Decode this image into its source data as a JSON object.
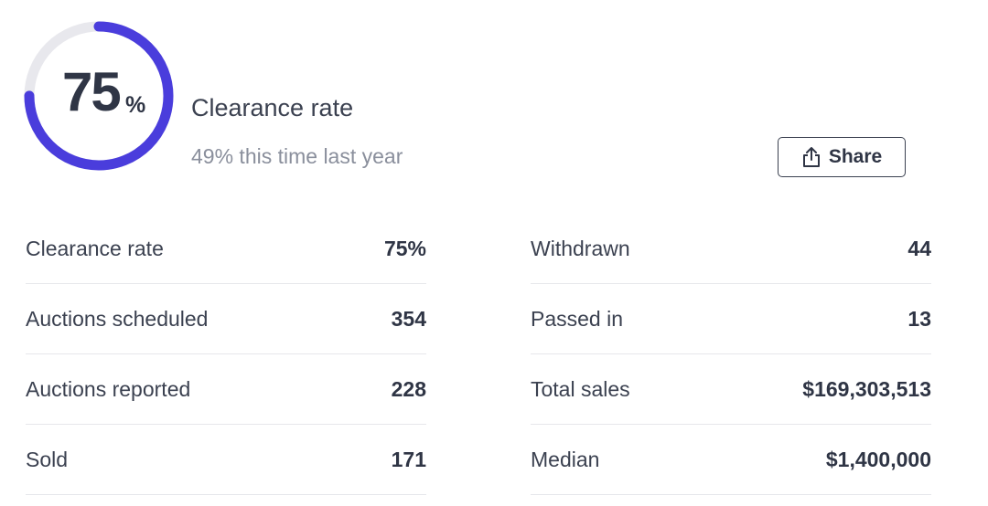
{
  "gauge": {
    "value": 75,
    "unit": "%"
  },
  "header": {
    "title": "Clearance rate",
    "subtitle": "49% this time last year",
    "button": "Share"
  },
  "table": {
    "left": [
      [
        "Clearance rate",
        "75%"
      ],
      [
        "Auctions scheduled",
        "354"
      ],
      [
        "Auctions reported",
        "228"
      ],
      [
        "Sold",
        "171"
      ]
    ],
    "right": [
      [
        "Withdrawn",
        "44"
      ],
      [
        "Passed in",
        "13"
      ],
      [
        "Total sales",
        "$169,303,513"
      ],
      [
        "Median",
        "$1,400,000"
      ]
    ]
  }
}
